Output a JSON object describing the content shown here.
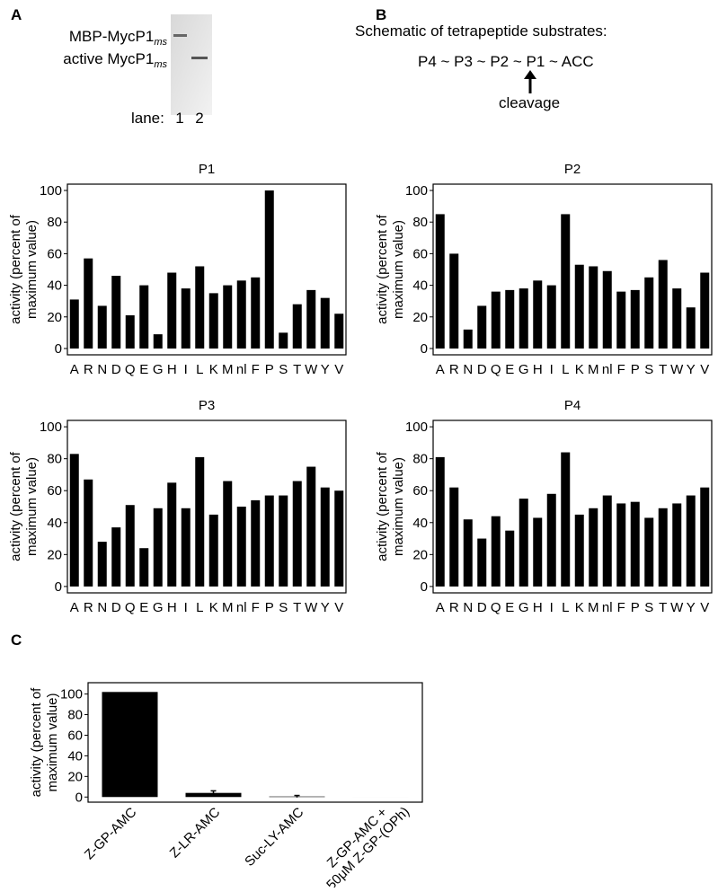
{
  "panel_a": {
    "label": "A",
    "protein_labels": [
      {
        "text": "MBP-MycP1",
        "subscript": "ms"
      },
      {
        "text": "active MycP1",
        "subscript": "ms"
      }
    ],
    "lane_label": "lane:",
    "lanes": [
      "1",
      "2"
    ]
  },
  "panel_b": {
    "label": "B",
    "heading": "Schematic of tetrapeptide substrates:",
    "sequence": "P4 ~ P3 ~ P2 ~ P1 ~ ACC",
    "arrow_label": "cleavage"
  },
  "panel_c": {
    "label": "C"
  },
  "chart_data": [
    {
      "type": "bar",
      "title": "P1",
      "color": "#000000",
      "categories": [
        "A",
        "R",
        "N",
        "D",
        "Q",
        "E",
        "G",
        "H",
        "I",
        "L",
        "K",
        "M",
        "nl",
        "F",
        "P",
        "S",
        "T",
        "W",
        "Y",
        "V"
      ],
      "values": [
        31,
        57,
        27,
        46,
        21,
        40,
        9,
        48,
        38,
        52,
        35,
        40,
        43,
        45,
        100,
        10,
        28,
        37,
        32,
        22
      ],
      "ylim": [
        -4,
        104
      ],
      "yticks": [
        0,
        20,
        40,
        60,
        80,
        100
      ],
      "ylabel": [
        "activity (percent of",
        "maximum value)"
      ]
    },
    {
      "type": "bar",
      "title": "P2",
      "color": "#000000",
      "categories": [
        "A",
        "R",
        "N",
        "D",
        "Q",
        "E",
        "G",
        "H",
        "I",
        "L",
        "K",
        "M",
        "nl",
        "F",
        "P",
        "S",
        "T",
        "W",
        "Y",
        "V"
      ],
      "values": [
        85,
        60,
        12,
        27,
        36,
        37,
        38,
        43,
        40,
        85,
        53,
        52,
        49,
        36,
        37,
        45,
        56,
        38,
        26,
        48
      ],
      "ylim": [
        -4,
        104
      ],
      "yticks": [
        0,
        20,
        40,
        60,
        80,
        100
      ],
      "ylabel": [
        "activity (percent of",
        "maximum value)"
      ]
    },
    {
      "type": "bar",
      "title": "P3",
      "color": "#000000",
      "categories": [
        "A",
        "R",
        "N",
        "D",
        "Q",
        "E",
        "G",
        "H",
        "I",
        "L",
        "K",
        "M",
        "nl",
        "F",
        "P",
        "S",
        "T",
        "W",
        "Y",
        "V"
      ],
      "values": [
        83,
        67,
        28,
        37,
        51,
        24,
        49,
        65,
        49,
        81,
        45,
        66,
        50,
        54,
        57,
        57,
        66,
        75,
        62,
        60
      ],
      "ylim": [
        -4,
        104
      ],
      "yticks": [
        0,
        20,
        40,
        60,
        80,
        100
      ],
      "ylabel": [
        "activity (percent of",
        "maximum value)"
      ]
    },
    {
      "type": "bar",
      "title": "P4",
      "color": "#000000",
      "categories": [
        "A",
        "R",
        "N",
        "D",
        "Q",
        "E",
        "G",
        "H",
        "I",
        "L",
        "K",
        "M",
        "nl",
        "F",
        "P",
        "S",
        "T",
        "W",
        "Y",
        "V"
      ],
      "values": [
        81,
        62,
        42,
        30,
        44,
        35,
        55,
        43,
        58,
        84,
        45,
        49,
        57,
        52,
        53,
        43,
        49,
        52,
        57,
        62
      ],
      "ylim": [
        -4,
        104
      ],
      "yticks": [
        0,
        20,
        40,
        60,
        80,
        100
      ],
      "ylabel": [
        "activity (percent of",
        "maximum value)"
      ]
    },
    {
      "type": "bar",
      "color": "#000000",
      "categories": [
        [
          "Z-GP-AMC"
        ],
        [
          "Z-LR-AMC"
        ],
        [
          "Suc-LY-AMC"
        ],
        [
          "Z-GP-AMC +",
          "50μM Z-GP-(OPh)"
        ]
      ],
      "values": [
        102,
        4,
        0.5,
        0
      ],
      "errors": [
        0,
        2,
        1,
        0
      ],
      "ylim": [
        -5,
        111
      ],
      "yticks": [
        0,
        20,
        40,
        60,
        80,
        100
      ],
      "ylabel": [
        "activity (percent of",
        "maximum value)"
      ]
    }
  ]
}
